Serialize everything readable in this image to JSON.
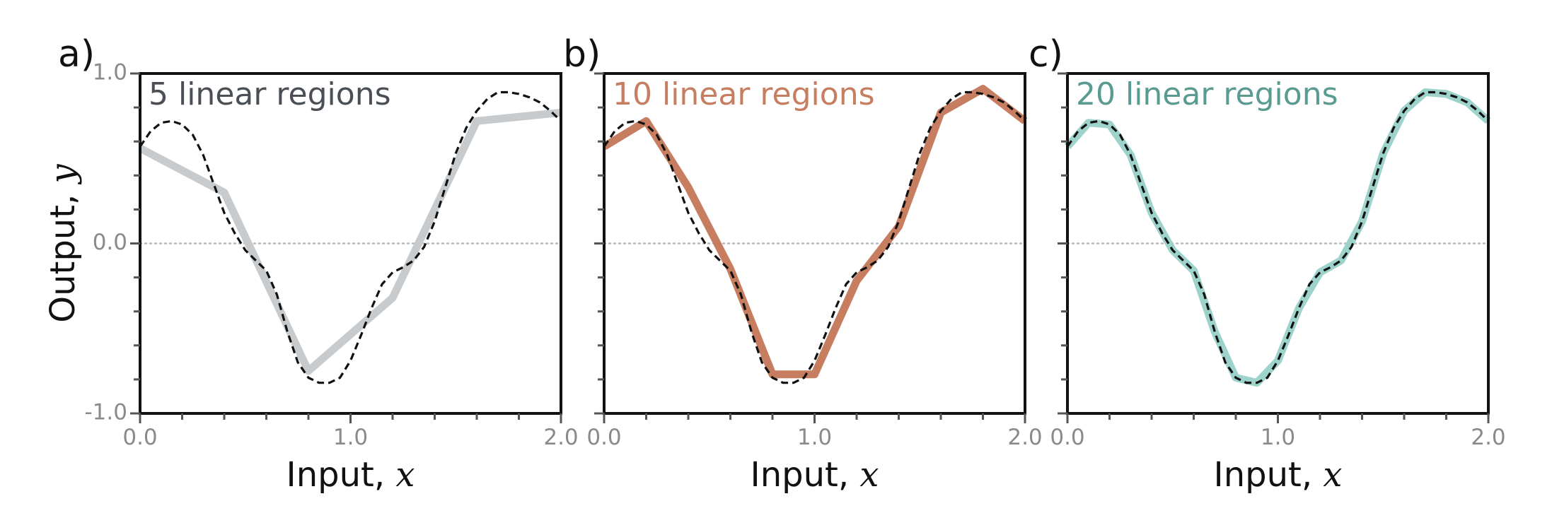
{
  "chart_data": [
    {
      "type": "line",
      "panel_label": "a)",
      "title": "5 linear regions",
      "title_color": "#4a4f55",
      "xlabel": "Input, x",
      "ylabel": "Output, y",
      "xlim": [
        0.0,
        2.0
      ],
      "ylim": [
        -1.0,
        1.0
      ],
      "xticklabels": [
        "0.0",
        "1.0",
        "2.0"
      ],
      "yticklabels": [
        "1.0",
        "0.0",
        "-1.0"
      ],
      "zero_line": true,
      "series": [
        {
          "color": "#c8cbce",
          "style": "solid-thick",
          "x": [
            0.0,
            0.4,
            0.8,
            1.2,
            1.6,
            2.0
          ],
          "y": [
            0.56,
            0.3,
            -0.75,
            -0.32,
            0.72,
            0.77
          ]
        },
        {
          "color": "#111111",
          "style": "dashed",
          "x": [
            0.0,
            0.05,
            0.1,
            0.15,
            0.2,
            0.25,
            0.3,
            0.35,
            0.4,
            0.45,
            0.5,
            0.55,
            0.6,
            0.65,
            0.7,
            0.75,
            0.8,
            0.85,
            0.9,
            0.95,
            1.0,
            1.05,
            1.1,
            1.15,
            1.2,
            1.25,
            1.3,
            1.35,
            1.4,
            1.45,
            1.5,
            1.55,
            1.6,
            1.65,
            1.7,
            1.75,
            1.8,
            1.85,
            1.9,
            1.95,
            2.0
          ],
          "y": [
            0.57,
            0.66,
            0.71,
            0.72,
            0.7,
            0.64,
            0.52,
            0.35,
            0.18,
            0.06,
            -0.04,
            -0.1,
            -0.16,
            -0.3,
            -0.52,
            -0.7,
            -0.79,
            -0.82,
            -0.82,
            -0.79,
            -0.69,
            -0.54,
            -0.38,
            -0.24,
            -0.17,
            -0.14,
            -0.1,
            -0.02,
            0.13,
            0.33,
            0.53,
            0.68,
            0.78,
            0.85,
            0.89,
            0.89,
            0.88,
            0.86,
            0.83,
            0.78,
            0.72
          ]
        }
      ]
    },
    {
      "type": "line",
      "panel_label": "b)",
      "title": "10 linear regions",
      "title_color": "#c77d5f",
      "xlabel": "Input, x",
      "ylabel": "",
      "xlim": [
        0.0,
        2.0
      ],
      "ylim": [
        -1.0,
        1.0
      ],
      "xticklabels": [
        "0.0",
        "1.0",
        "2.0"
      ],
      "yticklabels": [],
      "zero_line": true,
      "series": [
        {
          "color": "#c77d5f",
          "style": "solid-thick",
          "x": [
            0.0,
            0.2,
            0.4,
            0.6,
            0.8,
            1.0,
            1.2,
            1.4,
            1.6,
            1.8,
            2.0
          ],
          "y": [
            0.57,
            0.72,
            0.33,
            -0.15,
            -0.77,
            -0.77,
            -0.22,
            0.1,
            0.77,
            0.91,
            0.72
          ]
        },
        {
          "color": "#111111",
          "style": "dashed",
          "x": [
            0.0,
            0.05,
            0.1,
            0.15,
            0.2,
            0.25,
            0.3,
            0.35,
            0.4,
            0.45,
            0.5,
            0.55,
            0.6,
            0.65,
            0.7,
            0.75,
            0.8,
            0.85,
            0.9,
            0.95,
            1.0,
            1.05,
            1.1,
            1.15,
            1.2,
            1.25,
            1.3,
            1.35,
            1.4,
            1.45,
            1.5,
            1.55,
            1.6,
            1.65,
            1.7,
            1.75,
            1.8,
            1.85,
            1.9,
            1.95,
            2.0
          ],
          "y": [
            0.57,
            0.66,
            0.71,
            0.72,
            0.7,
            0.64,
            0.52,
            0.35,
            0.18,
            0.06,
            -0.04,
            -0.1,
            -0.16,
            -0.3,
            -0.52,
            -0.7,
            -0.79,
            -0.82,
            -0.82,
            -0.79,
            -0.69,
            -0.54,
            -0.38,
            -0.24,
            -0.17,
            -0.14,
            -0.1,
            -0.02,
            0.13,
            0.33,
            0.53,
            0.68,
            0.78,
            0.85,
            0.89,
            0.89,
            0.88,
            0.86,
            0.83,
            0.78,
            0.72
          ]
        }
      ]
    },
    {
      "type": "line",
      "panel_label": "c)",
      "title": "20 linear regions",
      "title_color": "#5a9b91",
      "xlabel": "Input, x",
      "ylabel": "",
      "xlim": [
        0.0,
        2.0
      ],
      "ylim": [
        -1.0,
        1.0
      ],
      "xticklabels": [
        "0.0",
        "1.0",
        "2.0"
      ],
      "yticklabels": [],
      "zero_line": true,
      "series": [
        {
          "color": "#9ed3cc",
          "style": "solid-thick",
          "x": [
            0.0,
            0.1,
            0.2,
            0.3,
            0.4,
            0.5,
            0.6,
            0.7,
            0.8,
            0.9,
            1.0,
            1.1,
            1.2,
            1.3,
            1.4,
            1.5,
            1.6,
            1.7,
            1.8,
            1.9,
            2.0
          ],
          "y": [
            0.57,
            0.71,
            0.7,
            0.52,
            0.18,
            -0.04,
            -0.16,
            -0.52,
            -0.79,
            -0.82,
            -0.69,
            -0.38,
            -0.17,
            -0.1,
            0.13,
            0.53,
            0.78,
            0.89,
            0.88,
            0.83,
            0.72
          ]
        },
        {
          "color": "#111111",
          "style": "dashed",
          "x": [
            0.0,
            0.05,
            0.1,
            0.15,
            0.2,
            0.25,
            0.3,
            0.35,
            0.4,
            0.45,
            0.5,
            0.55,
            0.6,
            0.65,
            0.7,
            0.75,
            0.8,
            0.85,
            0.9,
            0.95,
            1.0,
            1.05,
            1.1,
            1.15,
            1.2,
            1.25,
            1.3,
            1.35,
            1.4,
            1.45,
            1.5,
            1.55,
            1.6,
            1.65,
            1.7,
            1.75,
            1.8,
            1.85,
            1.9,
            1.95,
            2.0
          ],
          "y": [
            0.57,
            0.66,
            0.71,
            0.72,
            0.7,
            0.64,
            0.52,
            0.35,
            0.18,
            0.06,
            -0.04,
            -0.1,
            -0.16,
            -0.3,
            -0.52,
            -0.7,
            -0.79,
            -0.82,
            -0.82,
            -0.79,
            -0.69,
            -0.54,
            -0.38,
            -0.24,
            -0.17,
            -0.14,
            -0.1,
            -0.02,
            0.13,
            0.33,
            0.53,
            0.68,
            0.78,
            0.85,
            0.89,
            0.89,
            0.88,
            0.86,
            0.83,
            0.78,
            0.72
          ]
        }
      ]
    }
  ]
}
